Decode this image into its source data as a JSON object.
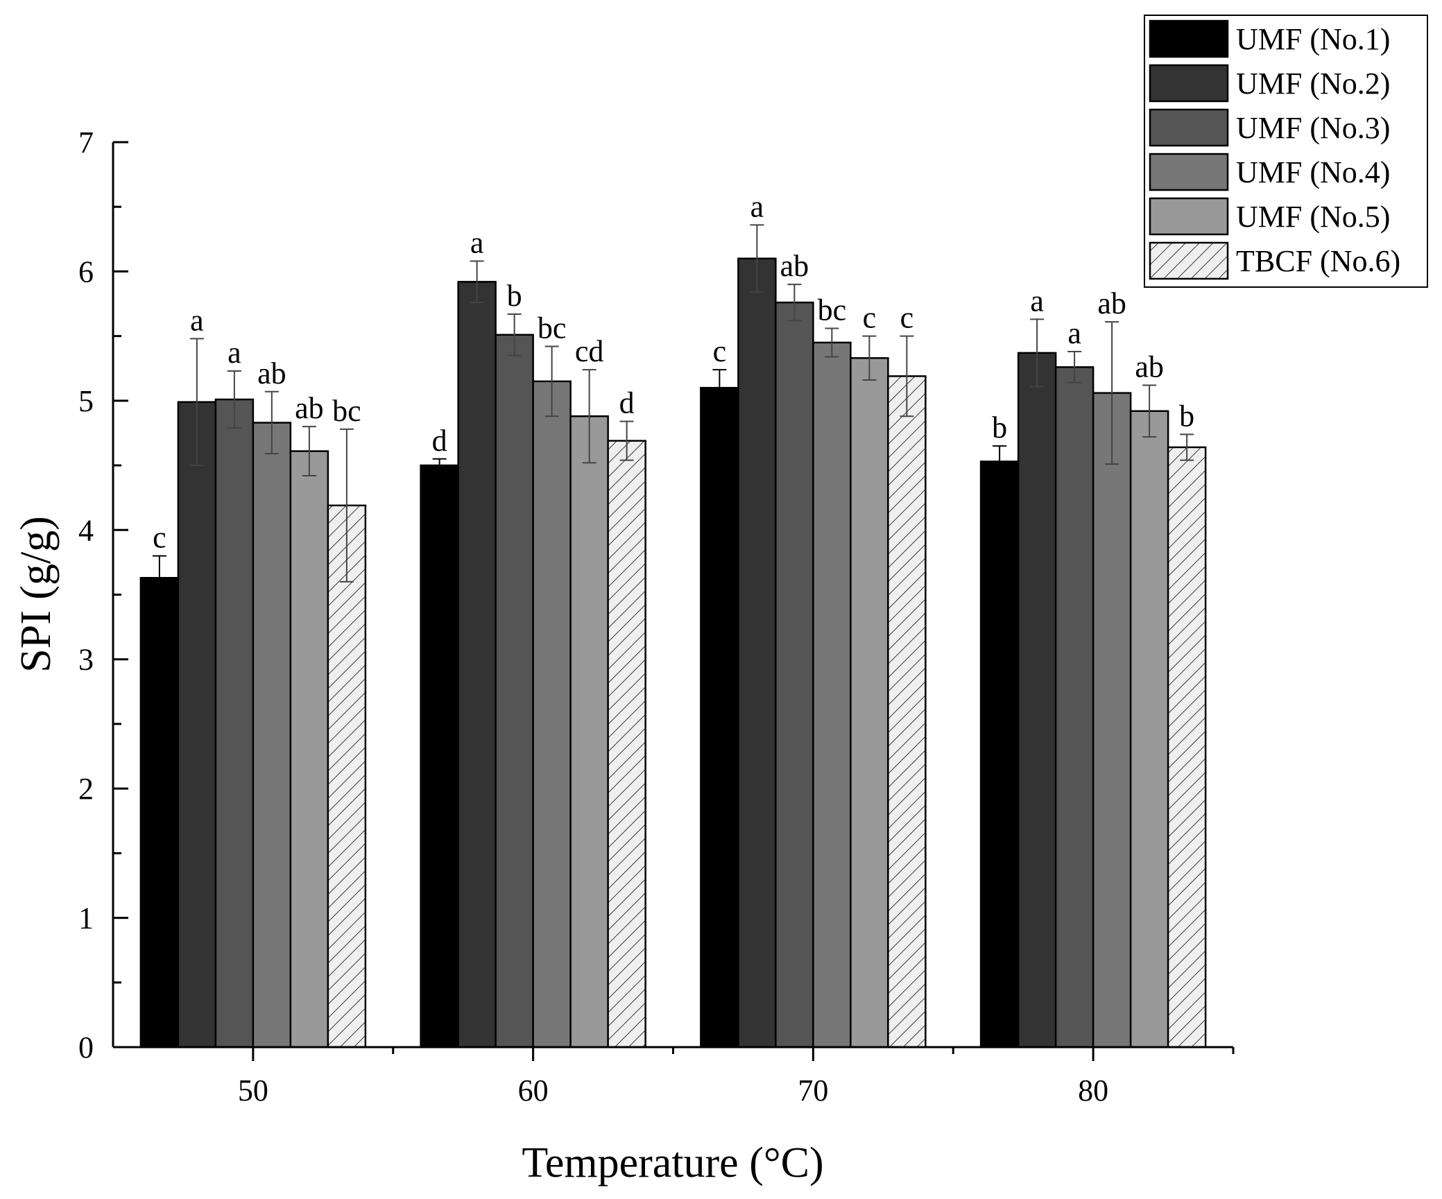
{
  "chart_data": {
    "type": "bar",
    "title": "",
    "xlabel": "Temperature (°C)",
    "ylabel": "SPI (g/g)",
    "ylim": [
      0,
      7
    ],
    "yticks": [
      "0",
      "1",
      "2",
      "3",
      "4",
      "5",
      "6",
      "7"
    ],
    "categories": [
      "50",
      "60",
      "70",
      "80"
    ],
    "legend_position": "top-right",
    "series": [
      {
        "name": "UMF (No.1)",
        "color": "#000000",
        "pattern": "solid",
        "values": [
          3.63,
          4.5,
          5.1,
          4.53
        ],
        "errors": [
          0.17,
          0.05,
          0.14,
          0.12
        ],
        "letters": [
          "c",
          "d",
          "c",
          "b"
        ]
      },
      {
        "name": "UMF (No.2)",
        "color": "#333333",
        "pattern": "solid",
        "values": [
          4.99,
          5.92,
          6.1,
          5.37
        ],
        "errors": [
          0.49,
          0.16,
          0.26,
          0.26
        ],
        "letters": [
          "a",
          "a",
          "a",
          "a"
        ]
      },
      {
        "name": "UMF (No.3)",
        "color": "#555555",
        "pattern": "solid",
        "values": [
          5.01,
          5.51,
          5.76,
          5.26
        ],
        "errors": [
          0.22,
          0.16,
          0.14,
          0.12
        ],
        "letters": [
          "a",
          "b",
          "ab",
          "a"
        ]
      },
      {
        "name": "UMF (No.4)",
        "color": "#777777",
        "pattern": "solid",
        "values": [
          4.83,
          5.15,
          5.45,
          5.06
        ],
        "errors": [
          0.24,
          0.27,
          0.11,
          0.55
        ],
        "letters": [
          "ab",
          "bc",
          "bc",
          "ab"
        ]
      },
      {
        "name": "UMF (No.5)",
        "color": "#999999",
        "pattern": "solid",
        "values": [
          4.61,
          4.88,
          5.33,
          4.92
        ],
        "errors": [
          0.19,
          0.36,
          0.17,
          0.2
        ],
        "letters": [
          "ab",
          "cd",
          "c",
          "ab"
        ]
      },
      {
        "name": "TBCF (No.6)",
        "color": "#e8e8e8",
        "pattern": "hatch",
        "values": [
          4.19,
          4.69,
          5.19,
          4.64
        ],
        "errors": [
          0.59,
          0.15,
          0.31,
          0.1
        ],
        "letters": [
          "bc",
          "d",
          "c",
          "b"
        ]
      }
    ]
  }
}
